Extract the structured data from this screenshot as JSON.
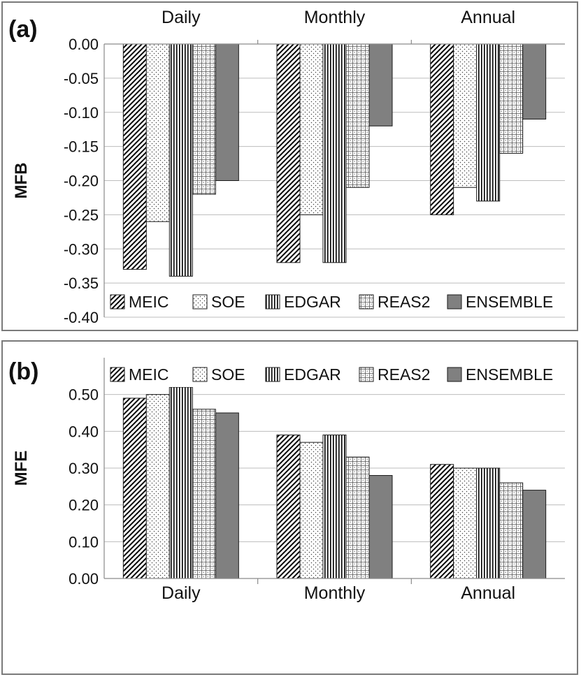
{
  "chart_data": [
    {
      "type": "bar",
      "panel_label": "(a)",
      "ylabel": "MFB",
      "categories": [
        "Daily",
        "Monthly",
        "Annual"
      ],
      "category_axis": "top",
      "ylim": [
        -0.4,
        0.0
      ],
      "yticks": [
        "0.00",
        "-0.05",
        "-0.10",
        "-0.15",
        "-0.20",
        "-0.25",
        "-0.30",
        "-0.35",
        "-0.40"
      ],
      "grid": true,
      "legend_position": "bottom",
      "series": [
        {
          "name": "MEIC",
          "values": [
            -0.33,
            -0.32,
            -0.25
          ],
          "pattern": "diagonal"
        },
        {
          "name": "SOE",
          "values": [
            -0.26,
            -0.25,
            -0.21
          ],
          "pattern": "dots"
        },
        {
          "name": "EDGAR",
          "values": [
            -0.34,
            -0.32,
            -0.23
          ],
          "pattern": "vertical"
        },
        {
          "name": "REAS2",
          "values": [
            -0.22,
            -0.21,
            -0.16
          ],
          "pattern": "grid"
        },
        {
          "name": "ENSEMBLE",
          "values": [
            -0.2,
            -0.12,
            -0.11
          ],
          "pattern": "solid"
        }
      ]
    },
    {
      "type": "bar",
      "panel_label": "(b)",
      "ylabel": "MFE",
      "categories": [
        "Daily",
        "Monthly",
        "Annual"
      ],
      "category_axis": "bottom",
      "ylim": [
        0.0,
        0.6
      ],
      "yticks": [
        "0.00",
        "0.10",
        "0.20",
        "0.30",
        "0.40",
        "0.50"
      ],
      "grid": true,
      "legend_position": "top",
      "series": [
        {
          "name": "MEIC",
          "values": [
            0.49,
            0.39,
            0.31
          ],
          "pattern": "diagonal"
        },
        {
          "name": "SOE",
          "values": [
            0.5,
            0.37,
            0.3
          ],
          "pattern": "dots"
        },
        {
          "name": "EDGAR",
          "values": [
            0.52,
            0.39,
            0.3
          ],
          "pattern": "vertical"
        },
        {
          "name": "REAS2",
          "values": [
            0.46,
            0.33,
            0.26
          ],
          "pattern": "grid"
        },
        {
          "name": "ENSEMBLE",
          "values": [
            0.45,
            0.28,
            0.24
          ],
          "pattern": "solid"
        }
      ]
    }
  ]
}
